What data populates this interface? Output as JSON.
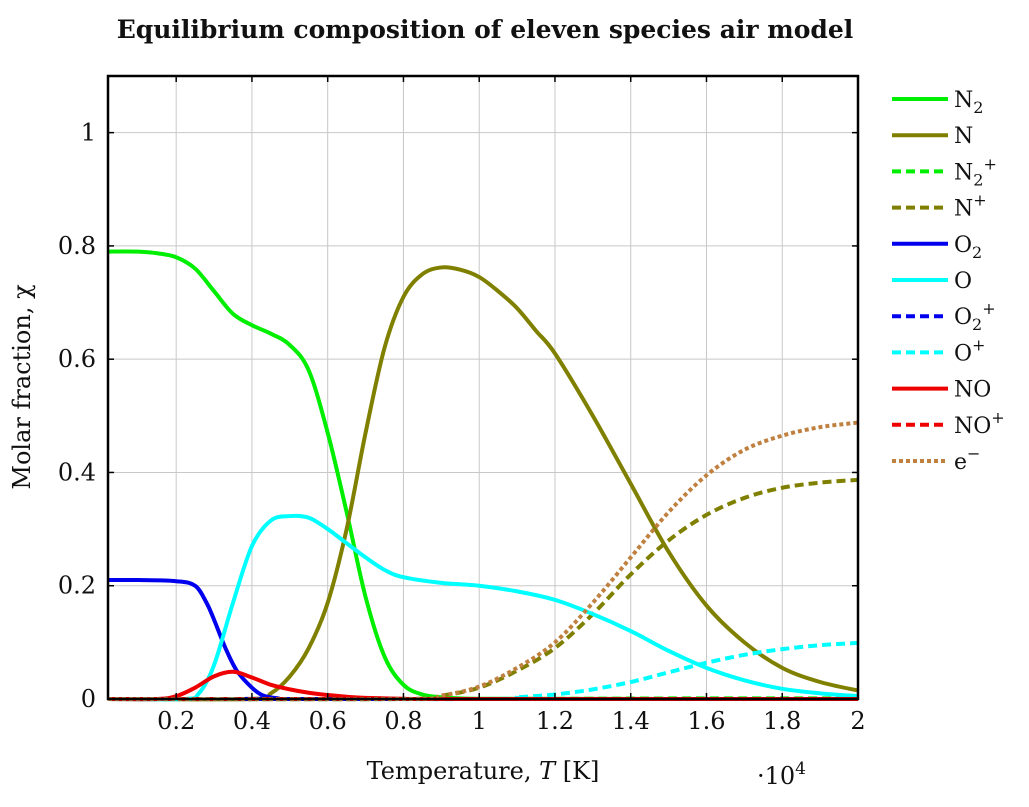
{
  "chart_data": {
    "type": "line",
    "title": "Equilibrium composition of eleven species air model",
    "xlabel": "Temperature, T [K]",
    "xlabel_parts": {
      "prefix": "Temperature, ",
      "var": "T",
      "suffix": " [K]"
    },
    "ylabel": "Molar fraction, χ",
    "x_multiplier_label": "·10",
    "x_multiplier_exp": "4",
    "xlim": [
      0.02,
      2.0
    ],
    "ylim": [
      0,
      1.1
    ],
    "xticks": [
      0.2,
      0.4,
      0.6,
      0.8,
      1,
      1.2,
      1.4,
      1.6,
      1.8,
      2
    ],
    "xtick_labels": [
      "0.2",
      "0.4",
      "0.6",
      "0.8",
      "1",
      "1.2",
      "1.4",
      "1.6",
      "1.8",
      "2"
    ],
    "yticks": [
      0,
      0.2,
      0.4,
      0.6,
      0.8,
      1
    ],
    "ytick_labels": [
      "0",
      "0.2",
      "0.4",
      "0.6",
      "0.8",
      "1"
    ],
    "grid": true,
    "legend_position": "outside-right",
    "series": [
      {
        "name": "N2",
        "label_main": "N",
        "label_sub": "2",
        "label_sup": "",
        "color": "#00ee00",
        "dash": "solid",
        "x": [
          0.02,
          0.1,
          0.15,
          0.2,
          0.25,
          0.3,
          0.35,
          0.4,
          0.45,
          0.5,
          0.55,
          0.6,
          0.65,
          0.7,
          0.75,
          0.8,
          0.85,
          0.9,
          0.95,
          1.0,
          1.2,
          1.5,
          2.0
        ],
        "y": [
          0.79,
          0.79,
          0.787,
          0.78,
          0.76,
          0.72,
          0.68,
          0.66,
          0.645,
          0.625,
          0.58,
          0.47,
          0.33,
          0.18,
          0.075,
          0.025,
          0.008,
          0.003,
          0.001,
          0.0005,
          0.0002,
          0.0001,
          0.0
        ]
      },
      {
        "name": "N",
        "label_main": "N",
        "label_sub": "",
        "label_sup": "",
        "color": "#808000",
        "dash": "solid",
        "x": [
          0.02,
          0.4,
          0.45,
          0.5,
          0.55,
          0.6,
          0.65,
          0.7,
          0.75,
          0.8,
          0.85,
          0.9,
          0.95,
          1.0,
          1.05,
          1.1,
          1.15,
          1.2,
          1.3,
          1.4,
          1.5,
          1.6,
          1.7,
          1.8,
          1.9,
          2.0
        ],
        "y": [
          0.0,
          0.0,
          0.01,
          0.04,
          0.09,
          0.17,
          0.3,
          0.47,
          0.62,
          0.71,
          0.75,
          0.762,
          0.758,
          0.745,
          0.72,
          0.69,
          0.65,
          0.61,
          0.5,
          0.38,
          0.26,
          0.165,
          0.1,
          0.055,
          0.03,
          0.015
        ]
      },
      {
        "name": "N2+",
        "label_main": "N",
        "label_sub": "2",
        "label_sup": "+",
        "color": "#00ee00",
        "dash": "dashed",
        "x": [
          0.02,
          1.0,
          1.5,
          2.0
        ],
        "y": [
          0.0,
          0.0,
          0.001,
          0.001
        ]
      },
      {
        "name": "N+",
        "label_main": "N",
        "label_sub": "",
        "label_sup": "+",
        "color": "#808000",
        "dash": "dashed",
        "x": [
          0.02,
          0.8,
          0.9,
          1.0,
          1.1,
          1.2,
          1.3,
          1.4,
          1.5,
          1.6,
          1.7,
          1.8,
          1.9,
          2.0
        ],
        "y": [
          0.0,
          0.0,
          0.006,
          0.02,
          0.05,
          0.09,
          0.15,
          0.22,
          0.28,
          0.325,
          0.355,
          0.373,
          0.382,
          0.387
        ]
      },
      {
        "name": "O2",
        "label_main": "O",
        "label_sub": "2",
        "label_sup": "",
        "color": "#0000ee",
        "dash": "solid",
        "x": [
          0.02,
          0.1,
          0.2,
          0.25,
          0.28,
          0.3,
          0.33,
          0.36,
          0.4,
          0.43,
          0.47,
          0.5,
          2.0
        ],
        "y": [
          0.21,
          0.21,
          0.208,
          0.2,
          0.17,
          0.14,
          0.09,
          0.05,
          0.02,
          0.006,
          0.001,
          0.0,
          0.0
        ]
      },
      {
        "name": "O",
        "label_main": "O",
        "label_sub": "",
        "label_sup": "",
        "color": "#00ffff",
        "dash": "solid",
        "x": [
          0.02,
          0.22,
          0.26,
          0.3,
          0.35,
          0.4,
          0.45,
          0.5,
          0.55,
          0.6,
          0.65,
          0.7,
          0.75,
          0.8,
          0.9,
          1.0,
          1.1,
          1.2,
          1.3,
          1.4,
          1.5,
          1.6,
          1.7,
          1.8,
          1.9,
          2.0
        ],
        "y": [
          0.0,
          0.0,
          0.01,
          0.06,
          0.17,
          0.27,
          0.315,
          0.323,
          0.32,
          0.3,
          0.275,
          0.25,
          0.228,
          0.215,
          0.205,
          0.2,
          0.19,
          0.175,
          0.15,
          0.12,
          0.085,
          0.055,
          0.033,
          0.018,
          0.01,
          0.005
        ]
      },
      {
        "name": "O2+",
        "label_main": "O",
        "label_sub": "2",
        "label_sup": "+",
        "color": "#0000ee",
        "dash": "dashed",
        "x": [
          0.02,
          2.0
        ],
        "y": [
          0.0,
          0.0
        ]
      },
      {
        "name": "O+",
        "label_main": "O",
        "label_sub": "",
        "label_sup": "+",
        "color": "#00ffff",
        "dash": "dashed",
        "x": [
          0.02,
          1.0,
          1.1,
          1.2,
          1.3,
          1.4,
          1.5,
          1.6,
          1.7,
          1.8,
          1.9,
          2.0
        ],
        "y": [
          0.0,
          0.0,
          0.003,
          0.008,
          0.017,
          0.03,
          0.047,
          0.064,
          0.078,
          0.088,
          0.095,
          0.099
        ]
      },
      {
        "name": "NO",
        "label_main": "NO",
        "label_sub": "",
        "label_sup": "",
        "color": "#ee0000",
        "dash": "solid",
        "x": [
          0.02,
          0.15,
          0.2,
          0.25,
          0.3,
          0.35,
          0.4,
          0.45,
          0.5,
          0.55,
          0.6,
          0.65,
          0.7,
          0.8,
          0.9,
          2.0
        ],
        "y": [
          0.0,
          0.0,
          0.005,
          0.02,
          0.04,
          0.048,
          0.038,
          0.025,
          0.017,
          0.011,
          0.007,
          0.004,
          0.002,
          0.0005,
          0.0,
          0.0
        ]
      },
      {
        "name": "NO+",
        "label_main": "NO",
        "label_sub": "",
        "label_sup": "+",
        "color": "#ee0000",
        "dash": "dashed",
        "x": [
          0.02,
          2.0
        ],
        "y": [
          0.0,
          0.0
        ]
      },
      {
        "name": "e-",
        "label_main": "e",
        "label_sub": "",
        "label_sup": "−",
        "color": "#c08040",
        "dash": "dotted",
        "x": [
          0.02,
          0.8,
          0.9,
          1.0,
          1.1,
          1.2,
          1.3,
          1.4,
          1.5,
          1.6,
          1.7,
          1.8,
          1.9,
          2.0
        ],
        "y": [
          0.0,
          0.0,
          0.006,
          0.022,
          0.055,
          0.1,
          0.17,
          0.25,
          0.33,
          0.395,
          0.44,
          0.465,
          0.48,
          0.488
        ]
      }
    ]
  }
}
